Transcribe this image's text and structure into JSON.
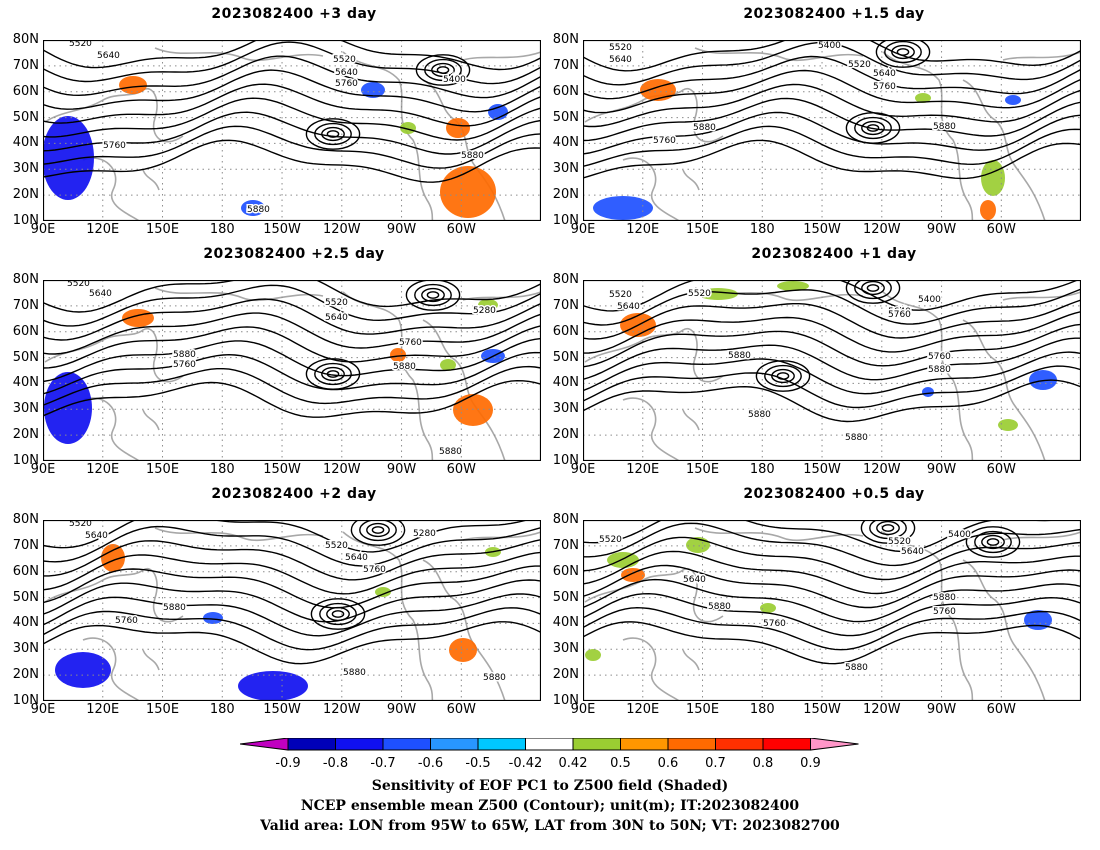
{
  "panels": [
    {
      "title": "2023082400  +3 day",
      "contour_labels": [
        "5520",
        "5640",
        "5520",
        "5640",
        "5760",
        "5400",
        "5760",
        "5880",
        "5880"
      ]
    },
    {
      "title": "2023082400  +1.5  day",
      "contour_labels": [
        "5520",
        "5640",
        "5400",
        "5520",
        "5640",
        "5760",
        "5880",
        "5760",
        "5880"
      ]
    },
    {
      "title": "2023082400  +2.5  day",
      "contour_labels": [
        "5520",
        "5640",
        "5520",
        "5640",
        "5280",
        "5760",
        "5880",
        "5760",
        "5880",
        "5880"
      ]
    },
    {
      "title": "2023082400  +1  day",
      "contour_labels": [
        "5520",
        "5640",
        "5520",
        "5400",
        "5640",
        "5760",
        "5880",
        "5760",
        "5880",
        "5880",
        "5880"
      ]
    },
    {
      "title": "2023082400  +2 day",
      "contour_labels": [
        "5520",
        "5640",
        "5520",
        "5640",
        "5280",
        "5760",
        "5880",
        "5760",
        "5880",
        "5880"
      ]
    },
    {
      "title": "2023082400  +0.5  day",
      "contour_labels": [
        "5520",
        "5400",
        "5520",
        "5640",
        "5640",
        "5880",
        "5760",
        "5760",
        "5880",
        "5880"
      ]
    }
  ],
  "axes": {
    "lon_labels": [
      "90E",
      "120E",
      "150E",
      "180",
      "150W",
      "120W",
      "90W",
      "60W"
    ],
    "lat_labels": [
      "10N",
      "20N",
      "30N",
      "40N",
      "50N",
      "60N",
      "70N",
      "80N"
    ]
  },
  "colorbar": {
    "labels": [
      "-0.9",
      "-0.8",
      "-0.7",
      "-0.6",
      "-0.5",
      "-0.42",
      "0.42",
      "0.5",
      "0.6",
      "0.7",
      "0.8",
      "0.9"
    ],
    "colors": [
      "#c000c0",
      "#0000b8",
      "#1010f0",
      "#1e50ff",
      "#2896ff",
      "#00c8ff",
      "#ffffff",
      "#9acd32",
      "#ff9600",
      "#ff6a00",
      "#ff3000",
      "#ff0000",
      "#ff96c8"
    ]
  },
  "footer": {
    "line1": "Sensitivity of EOF PC1 to Z500 field (Shaded)",
    "line2": "NCEP ensemble mean Z500 (Contour); unit(m); IT:2023082400",
    "line3": "Valid area: LON from 95W to 65W, LAT from 30N to 50N; VT: 2023082700"
  }
}
